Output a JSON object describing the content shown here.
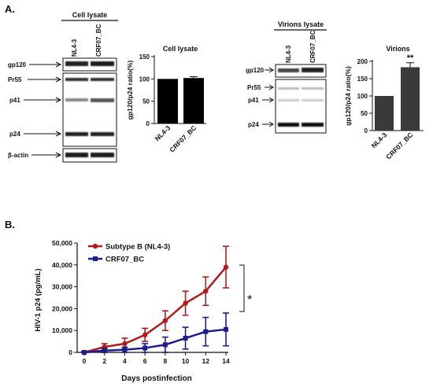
{
  "panels": {
    "a_label": "A.",
    "b_label": "B."
  },
  "blot_left": {
    "header": "Cell lysate",
    "lanes": [
      "NL4-3",
      "CRF07_BC"
    ],
    "markers": [
      "gp120",
      "Pr55",
      "p41",
      "p24",
      "β-actin"
    ]
  },
  "blot_right": {
    "header": "Virions lysate",
    "lanes": [
      "NL4-3",
      "CRF07_BC"
    ],
    "markers": [
      "gp120",
      "Pr55",
      "p41",
      "p24"
    ]
  },
  "chart_data": [
    {
      "type": "bar",
      "title": "Cell lysate",
      "ylabel": "gp120/p24 ratio(%)",
      "categories": [
        "NL4-3",
        "CRF07_BC"
      ],
      "values": [
        100,
        102
      ],
      "errors": [
        0,
        3
      ],
      "ylim": [
        0,
        150
      ],
      "yticks": [
        0,
        50,
        100,
        150
      ],
      "colors": [
        "#000000",
        "#000000"
      ],
      "annotations": []
    },
    {
      "type": "bar",
      "title": "Virions",
      "ylabel": "gp120/p24 ratio(%)",
      "categories": [
        "NL4-3",
        "CRF07_BC"
      ],
      "values": [
        100,
        183
      ],
      "errors": [
        0,
        13
      ],
      "ylim": [
        0,
        200
      ],
      "yticks": [
        0,
        50,
        100,
        150,
        200
      ],
      "colors": [
        "#3a3a3a",
        "#3a3a3a"
      ],
      "annotations": [
        "",
        "**"
      ]
    },
    {
      "type": "line",
      "xlabel": "Days postinfection",
      "ylabel": "HIV-1 p24 (pg/mL)",
      "x": [
        0,
        2,
        4,
        6,
        8,
        10,
        12,
        14
      ],
      "xticks": [
        "0",
        "2",
        "4",
        "6",
        "8",
        "10",
        "12",
        "14"
      ],
      "ylim": [
        0,
        50000
      ],
      "yticks": [
        "0",
        "10,000",
        "20,000",
        "30,000",
        "40,000",
        "50,000"
      ],
      "legend_position": "top-left",
      "significance": "*",
      "series": [
        {
          "name": "Subtype B (NL4-3)",
          "color": "#b01c1c",
          "marker": "circle",
          "values": [
            0,
            2500,
            4000,
            8000,
            14500,
            22500,
            28000,
            39000
          ],
          "errors": [
            500,
            1500,
            2500,
            3000,
            4500,
            5500,
            6500,
            9500
          ]
        },
        {
          "name": "CRF07_BC",
          "color": "#1c1c8c",
          "marker": "square",
          "values": [
            0,
            800,
            1200,
            2000,
            3500,
            6500,
            9500,
            10500
          ],
          "errors": [
            300,
            1000,
            1200,
            2000,
            3500,
            5000,
            6500,
            7500
          ]
        }
      ]
    }
  ]
}
